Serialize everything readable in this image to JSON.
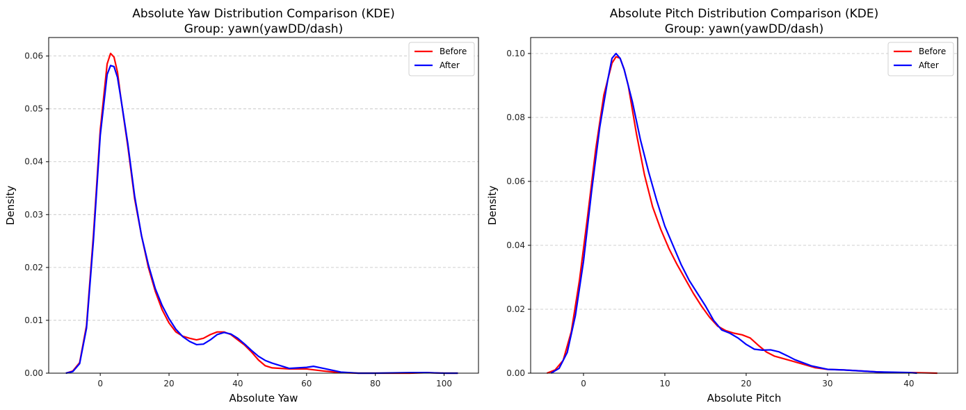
{
  "chart_data": [
    {
      "type": "line",
      "title": "Absolute Yaw Distribution Comparison (KDE)",
      "subtitle": "Group: yawn(yawDD/dash)",
      "xlabel": "Absolute Yaw",
      "ylabel": "Density",
      "xlim": [
        -15,
        110
      ],
      "ylim": [
        0,
        0.0635
      ],
      "xticks": [
        0,
        20,
        40,
        60,
        80,
        100
      ],
      "yticks": [
        0.0,
        0.01,
        0.02,
        0.03,
        0.04,
        0.05,
        0.06
      ],
      "ytick_labels": [
        "0.00",
        "0.01",
        "0.02",
        "0.03",
        "0.04",
        "0.05",
        "0.06"
      ],
      "grid": "y-dashed",
      "legend": "top-right",
      "series": [
        {
          "name": "Before",
          "color": "#ff0000",
          "x": [
            -10,
            -8,
            -6,
            -4,
            -2,
            0,
            2,
            3,
            4,
            5,
            6,
            8,
            10,
            12,
            14,
            16,
            18,
            20,
            22,
            24,
            26,
            28,
            30,
            32,
            34,
            36,
            38,
            40,
            42,
            44,
            46,
            48,
            50,
            55,
            60,
            65,
            70,
            75,
            80,
            90,
            95,
            100,
            104
          ],
          "y": [
            0.0,
            0.0004,
            0.002,
            0.009,
            0.026,
            0.046,
            0.0585,
            0.0605,
            0.0598,
            0.057,
            0.052,
            0.043,
            0.033,
            0.026,
            0.02,
            0.0155,
            0.012,
            0.0095,
            0.0078,
            0.007,
            0.0066,
            0.0063,
            0.0066,
            0.0073,
            0.0078,
            0.0078,
            0.0073,
            0.0063,
            0.0053,
            0.004,
            0.0025,
            0.0014,
            0.001,
            0.0008,
            0.0008,
            0.0004,
            0.0001,
            0.0,
            0.0,
            0.0,
            0.0001,
            0.0,
            0.0
          ]
        },
        {
          "name": "After",
          "color": "#0000ff",
          "x": [
            -10,
            -8,
            -6,
            -4,
            -2,
            0,
            2,
            3,
            4,
            5,
            6,
            8,
            10,
            12,
            14,
            16,
            18,
            20,
            22,
            24,
            26,
            28,
            30,
            32,
            34,
            36,
            38,
            40,
            42,
            44,
            46,
            48,
            50,
            55,
            60,
            62,
            65,
            70,
            75,
            80,
            90,
            95,
            100,
            104
          ],
          "y": [
            0.0,
            0.0003,
            0.0018,
            0.0085,
            0.025,
            0.045,
            0.0565,
            0.0582,
            0.058,
            0.056,
            0.052,
            0.0435,
            0.0335,
            0.026,
            0.0205,
            0.016,
            0.0128,
            0.0103,
            0.0083,
            0.0069,
            0.006,
            0.0054,
            0.0055,
            0.0063,
            0.0073,
            0.0077,
            0.0074,
            0.0066,
            0.0055,
            0.0043,
            0.0032,
            0.0024,
            0.0019,
            0.0009,
            0.0011,
            0.0013,
            0.0009,
            0.0002,
            0.0,
            0.0,
            0.0001,
            0.0001,
            0.0,
            0.0
          ]
        }
      ]
    },
    {
      "type": "line",
      "title": "Absolute Pitch Distribution Comparison (KDE)",
      "subtitle": "Group: yawn(yawDD/dash)",
      "xlabel": "Absolute Pitch",
      "ylabel": "Density",
      "xlim": [
        -6.5,
        46
      ],
      "ylim": [
        0,
        0.105
      ],
      "xticks": [
        0,
        10,
        20,
        30,
        40
      ],
      "yticks": [
        0.0,
        0.02,
        0.04,
        0.06,
        0.08,
        0.1
      ],
      "ytick_labels": [
        "0.00",
        "0.02",
        "0.04",
        "0.06",
        "0.08",
        "0.10"
      ],
      "grid": "y-dashed",
      "legend": "top-right",
      "series": [
        {
          "name": "Before",
          "color": "#ff0000",
          "x": [
            -4.5,
            -3.5,
            -2.5,
            -1.5,
            -0.5,
            0.5,
            1.5,
            2.5,
            3.5,
            4.0,
            4.5,
            5.0,
            5.5,
            6.5,
            7.5,
            8.5,
            9.5,
            10.5,
            11.5,
            12.5,
            13.5,
            14.5,
            15.5,
            16.5,
            17.5,
            18.5,
            19.5,
            20.5,
            21.5,
            22.5,
            23.5,
            24.5,
            25.5,
            27.0,
            28.5,
            30.0,
            32.0,
            34.0,
            36.0,
            38.0,
            40.0,
            42.0,
            43.5
          ],
          "y": [
            0.0,
            0.001,
            0.004,
            0.013,
            0.029,
            0.049,
            0.07,
            0.087,
            0.097,
            0.099,
            0.0985,
            0.095,
            0.09,
            0.075,
            0.062,
            0.052,
            0.045,
            0.039,
            0.034,
            0.0295,
            0.025,
            0.021,
            0.0175,
            0.0147,
            0.0133,
            0.0125,
            0.012,
            0.011,
            0.0087,
            0.0066,
            0.0053,
            0.0046,
            0.0039,
            0.0028,
            0.0017,
            0.0012,
            0.001,
            0.0007,
            0.0004,
            0.0002,
            0.0002,
            0.0001,
            0.0
          ]
        },
        {
          "name": "After",
          "color": "#0000ff",
          "x": [
            -4.0,
            -3.0,
            -2.0,
            -1.0,
            0.0,
            1.0,
            2.0,
            3.0,
            3.5,
            4.0,
            4.5,
            5.0,
            6.0,
            7.0,
            8.0,
            9.0,
            10.0,
            11.0,
            12.0,
            13.0,
            14.0,
            15.0,
            16.0,
            17.0,
            18.0,
            19.0,
            20.0,
            21.0,
            22.0,
            23.0,
            24.0,
            25.0,
            26.0,
            28.0,
            30.0,
            32.0,
            34.0,
            36.0,
            38.0,
            40.0,
            41.0
          ],
          "y": [
            0.0,
            0.0015,
            0.0065,
            0.018,
            0.035,
            0.057,
            0.077,
            0.092,
            0.0985,
            0.1,
            0.0985,
            0.095,
            0.085,
            0.073,
            0.063,
            0.054,
            0.046,
            0.04,
            0.034,
            0.029,
            0.025,
            0.021,
            0.0165,
            0.0135,
            0.0125,
            0.011,
            0.009,
            0.0075,
            0.0072,
            0.0073,
            0.0067,
            0.0055,
            0.0042,
            0.0023,
            0.0012,
            0.001,
            0.0007,
            0.0004,
            0.0003,
            0.0002,
            0.0
          ]
        }
      ]
    }
  ]
}
